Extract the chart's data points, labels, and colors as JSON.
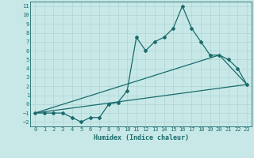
{
  "xlabel": "Humidex (Indice chaleur)",
  "ylabel": "",
  "background_color": "#c8e8e8",
  "grid_color": "#aed4d4",
  "line_color": "#1a6b6b",
  "xlim": [
    -0.5,
    23.5
  ],
  "ylim": [
    -2.5,
    11.5
  ],
  "xticks": [
    0,
    1,
    2,
    3,
    4,
    5,
    6,
    7,
    8,
    9,
    10,
    11,
    12,
    13,
    14,
    15,
    16,
    17,
    18,
    19,
    20,
    21,
    22,
    23
  ],
  "yticks": [
    -2,
    -1,
    0,
    1,
    2,
    3,
    4,
    5,
    6,
    7,
    8,
    9,
    10,
    11
  ],
  "data_x": [
    0,
    1,
    2,
    3,
    4,
    5,
    6,
    7,
    8,
    9,
    10,
    11,
    12,
    13,
    14,
    15,
    16,
    17,
    18,
    19,
    20,
    21,
    22,
    23
  ],
  "data_y": [
    -1,
    -1,
    -1,
    -1,
    -1.5,
    -2,
    -1.5,
    -1.5,
    0,
    0.2,
    1.5,
    7.5,
    6,
    7,
    7.5,
    8.5,
    11,
    8.5,
    7,
    5.5,
    5.5,
    5,
    4,
    2.2
  ],
  "line1_x": [
    0,
    23
  ],
  "line1_y": [
    -1,
    2.2
  ],
  "line2_x": [
    0,
    20,
    23
  ],
  "line2_y": [
    -1,
    5.5,
    2.2
  ],
  "font_color": "#1a6b6b",
  "marker": "D",
  "markersize": 2.0,
  "linewidth": 0.9,
  "tick_fontsize": 5.0,
  "xlabel_fontsize": 6.0
}
